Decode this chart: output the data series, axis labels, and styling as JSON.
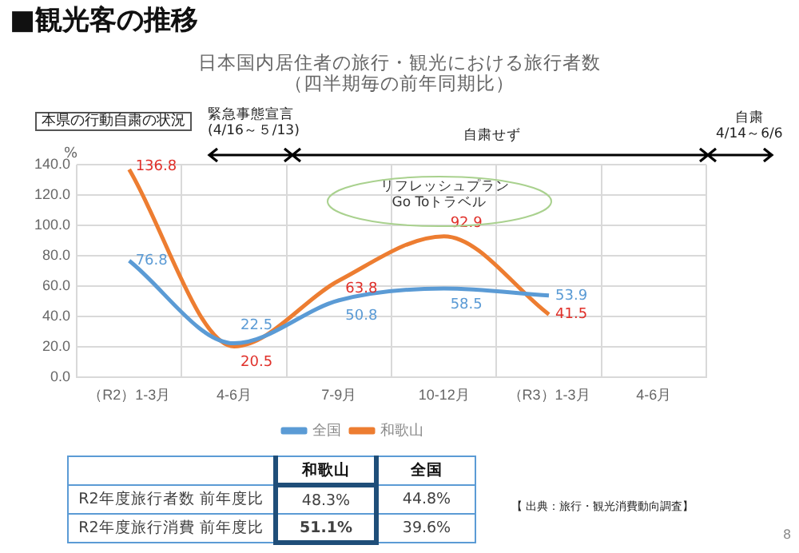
{
  "chart_data": {
    "type": "line",
    "title": "■観光客の推移",
    "subtitle": "日本国内居住者の旅行・観光における旅行者数（四半期毎の前年同期比）",
    "ylabel": "%",
    "categories": [
      "（R2）1-3月",
      "4-6月",
      "7-9月",
      "10-12月",
      "（R3）1-3月",
      "4-6月"
    ],
    "series": [
      {
        "name": "全国",
        "color": "#5b9bd5",
        "values": [
          76.8,
          22.5,
          50.8,
          58.5,
          53.9,
          null
        ]
      },
      {
        "name": "和歌山",
        "color": "#ed7d31",
        "values": [
          136.8,
          20.5,
          63.8,
          92.9,
          41.5,
          null
        ]
      }
    ],
    "ylim": [
      0,
      140
    ],
    "yticks": [
      {
        "value": 0,
        "label": "0.0"
      },
      {
        "value": 20,
        "label": "20.0"
      },
      {
        "value": 40,
        "label": "40.0"
      },
      {
        "value": 60,
        "label": "60.0"
      },
      {
        "value": 80,
        "label": "80.0"
      },
      {
        "value": 100,
        "label": "100.0"
      },
      {
        "value": 120,
        "label": "120.0"
      },
      {
        "value": 140,
        "label": "140.0"
      }
    ],
    "grid": true,
    "legend": "bottom",
    "data_labels": true,
    "marker": "none",
    "line_style": "solid",
    "annotations": [
      "本県の行動自粛の状況",
      "緊急事態宣言\n(4/16～５/13)",
      "自粛せず",
      "自粛\n4/14～6/6",
      "リフレッシュプラン\nGo Toトラベル",
      "和歌山",
      "全国",
      "R2年度旅行者数 前年度比",
      "48.3%",
      "44.8%",
      "R2年度旅行消費 前年度比",
      "51.1%",
      "39.6%",
      "【 出典：旅行・観光消費動向調査】",
      "8"
    ]
  }
}
